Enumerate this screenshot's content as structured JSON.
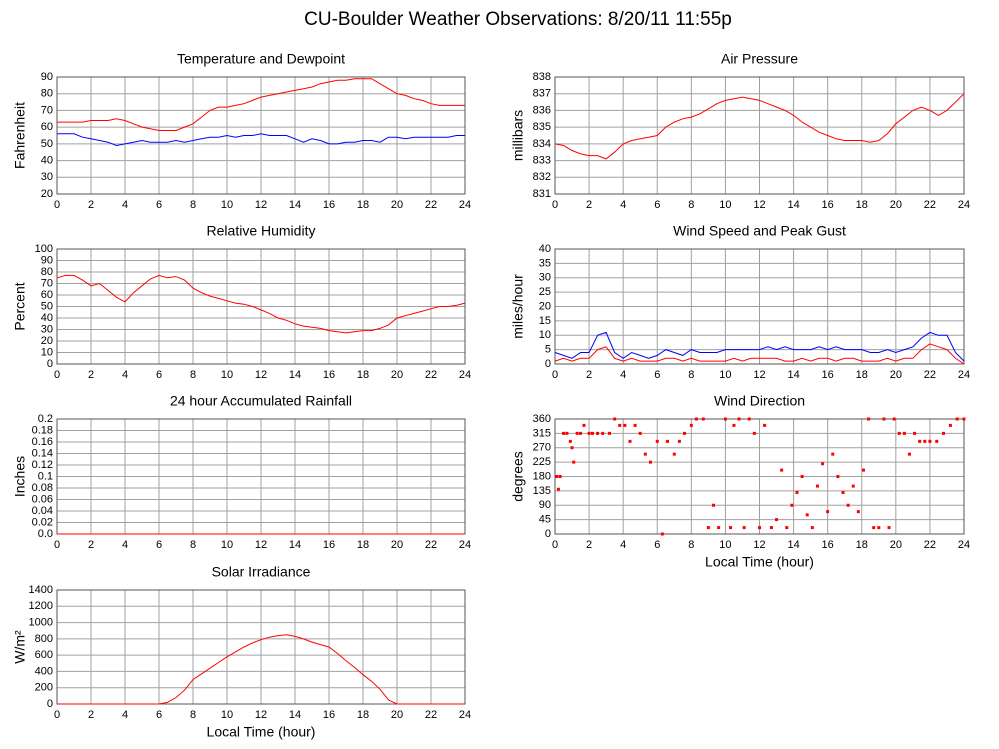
{
  "title": "CU-Boulder Weather Observations: 8/20/11 11:55p",
  "chart_data": [
    {
      "type": "line",
      "title": "Temperature and Dewpoint",
      "y_label": "Fahrenheit",
      "x": [
        0,
        0.5,
        1,
        1.5,
        2,
        2.5,
        3,
        3.5,
        4,
        4.5,
        5,
        5.5,
        6,
        6.5,
        7,
        7.5,
        8,
        8.5,
        9,
        9.5,
        10,
        10.5,
        11,
        11.5,
        12,
        12.5,
        13,
        13.5,
        14,
        14.5,
        15,
        15.5,
        16,
        16.5,
        17,
        17.5,
        18,
        18.5,
        19,
        19.5,
        20,
        20.5,
        21,
        21.5,
        22,
        22.5,
        23,
        23.5,
        24
      ],
      "series": [
        {
          "color": "#ff0000",
          "values": [
            63,
            63,
            63,
            63,
            64,
            64,
            64,
            65,
            64,
            62,
            60,
            59,
            58,
            58,
            58,
            60,
            62,
            66,
            70,
            72,
            72,
            73,
            74,
            76,
            78,
            79,
            80,
            81,
            82,
            83,
            84,
            86,
            87,
            88,
            88,
            89,
            89,
            89,
            86,
            83,
            80,
            79,
            77,
            76,
            74,
            73,
            73,
            73,
            73
          ]
        },
        {
          "color": "#0000ff",
          "values": [
            56,
            56,
            56,
            54,
            53,
            52,
            51,
            49,
            50,
            51,
            52,
            51,
            51,
            51,
            52,
            51,
            52,
            53,
            54,
            54,
            55,
            54,
            55,
            55,
            56,
            55,
            55,
            55,
            53,
            51,
            53,
            52,
            50,
            50,
            51,
            51,
            52,
            52,
            51,
            54,
            54,
            53,
            54,
            54,
            54,
            54,
            54,
            55,
            55
          ]
        }
      ],
      "xlim": [
        0,
        24
      ],
      "xticks": [
        0,
        2,
        4,
        6,
        8,
        10,
        12,
        14,
        16,
        18,
        20,
        22,
        24
      ],
      "ylim": [
        20,
        90
      ],
      "yticks": [
        20,
        30,
        40,
        50,
        60,
        70,
        80,
        90
      ],
      "grid": true
    },
    {
      "type": "line",
      "title": "Air Pressure",
      "y_label": "millibars",
      "x": [
        0,
        0.5,
        1,
        1.5,
        2,
        2.5,
        3,
        3.5,
        4,
        4.5,
        5,
        5.5,
        6,
        6.5,
        7,
        7.5,
        8,
        8.5,
        9,
        9.5,
        10,
        10.5,
        11,
        11.5,
        12,
        12.5,
        13,
        13.5,
        14,
        14.5,
        15,
        15.5,
        16,
        16.5,
        17,
        17.5,
        18,
        18.5,
        19,
        19.5,
        20,
        20.5,
        21,
        21.5,
        22,
        22.5,
        23,
        23.5,
        24
      ],
      "series": [
        {
          "color": "#ff0000",
          "values": [
            834.0,
            833.9,
            833.6,
            833.4,
            833.3,
            833.3,
            833.1,
            833.5,
            834.0,
            834.2,
            834.3,
            834.4,
            834.5,
            835.0,
            835.3,
            835.5,
            835.6,
            835.8,
            836.1,
            836.4,
            836.6,
            836.7,
            836.8,
            836.7,
            836.6,
            836.4,
            836.2,
            836.0,
            835.7,
            835.3,
            835.0,
            834.7,
            834.5,
            834.3,
            834.2,
            834.2,
            834.2,
            834.1,
            834.2,
            834.6,
            835.2,
            835.6,
            836.0,
            836.2,
            836.0,
            835.7,
            836.0,
            836.5,
            837.0
          ]
        }
      ],
      "xlim": [
        0,
        24
      ],
      "xticks": [
        0,
        2,
        4,
        6,
        8,
        10,
        12,
        14,
        16,
        18,
        20,
        22,
        24
      ],
      "ylim": [
        831,
        838
      ],
      "yticks": [
        831,
        832,
        833,
        834,
        835,
        836,
        837,
        838
      ],
      "grid": true
    },
    {
      "type": "line",
      "title": "Relative Humidity",
      "y_label": "Percent",
      "x": [
        0,
        0.5,
        1,
        1.5,
        2,
        2.5,
        3,
        3.5,
        4,
        4.5,
        5,
        5.5,
        6,
        6.5,
        7,
        7.5,
        8,
        8.5,
        9,
        9.5,
        10,
        10.5,
        11,
        11.5,
        12,
        12.5,
        13,
        13.5,
        14,
        14.5,
        15,
        15.5,
        16,
        16.5,
        17,
        17.5,
        18,
        18.5,
        19,
        19.5,
        20,
        20.5,
        21,
        21.5,
        22,
        22.5,
        23,
        23.5,
        24
      ],
      "series": [
        {
          "color": "#ff0000",
          "values": [
            75,
            77,
            77,
            73,
            68,
            70,
            64,
            58,
            54,
            62,
            68,
            74,
            77,
            75,
            76,
            73,
            66,
            62,
            59,
            57,
            55,
            53,
            52,
            50,
            47,
            44,
            40,
            38,
            35,
            33,
            32,
            31,
            29,
            28,
            27,
            28,
            29,
            29,
            31,
            34,
            40,
            42,
            44,
            46,
            48,
            50,
            50,
            51,
            53
          ]
        }
      ],
      "xlim": [
        0,
        24
      ],
      "xticks": [
        0,
        2,
        4,
        6,
        8,
        10,
        12,
        14,
        16,
        18,
        20,
        22,
        24
      ],
      "ylim": [
        0,
        100
      ],
      "yticks": [
        0,
        10,
        20,
        30,
        40,
        50,
        60,
        70,
        80,
        90,
        100
      ],
      "grid": true
    },
    {
      "type": "line",
      "title": "Wind Speed and Peak Gust",
      "y_label": "miles/hour",
      "x": [
        0,
        0.5,
        1,
        1.5,
        2,
        2.5,
        3,
        3.5,
        4,
        4.5,
        5,
        5.5,
        6,
        6.5,
        7,
        7.5,
        8,
        8.5,
        9,
        9.5,
        10,
        10.5,
        11,
        11.5,
        12,
        12.5,
        13,
        13.5,
        14,
        14.5,
        15,
        15.5,
        16,
        16.5,
        17,
        17.5,
        18,
        18.5,
        19,
        19.5,
        20,
        20.5,
        21,
        21.5,
        22,
        22.5,
        23,
        23.5,
        24
      ],
      "series": [
        {
          "color": "#0000ff",
          "values": [
            4,
            3,
            2,
            4,
            4,
            10,
            11,
            4,
            2,
            4,
            3,
            2,
            3,
            5,
            4,
            3,
            5,
            4,
            4,
            4,
            5,
            5,
            5,
            5,
            5,
            6,
            5,
            6,
            5,
            5,
            5,
            6,
            5,
            6,
            5,
            5,
            5,
            4,
            4,
            5,
            4,
            5,
            6,
            9,
            11,
            10,
            10,
            4,
            1
          ]
        },
        {
          "color": "#ff0000",
          "values": [
            1,
            2,
            1,
            2,
            2,
            5,
            6,
            2,
            1,
            2,
            1,
            1,
            1,
            2,
            2,
            1,
            2,
            1,
            1,
            1,
            1,
            2,
            1,
            2,
            2,
            2,
            2,
            1,
            1,
            2,
            1,
            2,
            2,
            1,
            2,
            2,
            1,
            1,
            1,
            2,
            1,
            2,
            2,
            5,
            7,
            6,
            5,
            2,
            0
          ]
        }
      ],
      "xlim": [
        0,
        24
      ],
      "xticks": [
        0,
        2,
        4,
        6,
        8,
        10,
        12,
        14,
        16,
        18,
        20,
        22,
        24
      ],
      "ylim": [
        0,
        40
      ],
      "yticks": [
        0,
        5,
        10,
        15,
        20,
        25,
        30,
        35,
        40
      ],
      "grid": true
    },
    {
      "type": "line",
      "title": "24 hour Accumulated Rainfall",
      "y_label": "Inches",
      "x": [
        0,
        24
      ],
      "series": [
        {
          "color": "#ff0000",
          "values": [
            0,
            0
          ]
        }
      ],
      "xlim": [
        0,
        24
      ],
      "xticks": [
        0,
        2,
        4,
        6,
        8,
        10,
        12,
        14,
        16,
        18,
        20,
        22,
        24
      ],
      "ylim": [
        0,
        0.2
      ],
      "yticks": [
        {
          "value": 0,
          "label": "0.0"
        },
        0.02,
        0.04,
        0.06,
        0.08,
        0.1,
        0.12,
        0.14,
        0.16,
        0.18,
        0.2
      ],
      "grid": true
    },
    {
      "type": "scatter",
      "title": "Wind Direction",
      "y_label": "degrees",
      "x_label": "Local Time (hour)",
      "x": [
        0.1,
        0.2,
        0.3,
        0.5,
        0.7,
        0.9,
        1.0,
        1.1,
        1.3,
        1.5,
        1.7,
        2.0,
        2.2,
        2.5,
        2.8,
        3.2,
        3.5,
        3.8,
        4.1,
        4.4,
        4.7,
        5.0,
        5.3,
        5.6,
        6.0,
        6.3,
        6.6,
        7.0,
        7.3,
        7.6,
        8.0,
        8.3,
        8.7,
        9.0,
        9.3,
        9.6,
        10.0,
        10.3,
        10.5,
        10.8,
        11.1,
        11.4,
        11.7,
        12.0,
        12.3,
        12.7,
        13.0,
        13.3,
        13.6,
        13.9,
        14.2,
        14.5,
        14.8,
        15.1,
        15.4,
        15.7,
        16.0,
        16.3,
        16.6,
        16.9,
        17.2,
        17.5,
        17.8,
        18.1,
        18.4,
        18.7,
        19.0,
        19.3,
        19.6,
        19.9,
        20.2,
        20.5,
        20.8,
        21.1,
        21.4,
        21.7,
        22.0,
        22.4,
        22.8,
        23.2,
        23.6,
        24
      ],
      "series": [
        {
          "color": "#ff0000",
          "values": [
            180,
            140,
            180,
            315,
            315,
            290,
            270,
            225,
            315,
            315,
            340,
            315,
            315,
            315,
            315,
            315,
            360,
            340,
            340,
            290,
            340,
            315,
            250,
            225,
            290,
            0,
            290,
            250,
            290,
            315,
            340,
            360,
            360,
            20,
            90,
            20,
            360,
            20,
            340,
            360,
            20,
            360,
            315,
            20,
            340,
            20,
            45,
            200,
            20,
            90,
            130,
            180,
            60,
            20,
            150,
            220,
            70,
            250,
            180,
            130,
            90,
            150,
            70,
            200,
            360,
            20,
            20,
            360,
            20,
            360,
            315,
            315,
            250,
            315,
            290,
            290,
            290,
            290,
            315,
            340,
            360,
            360
          ]
        }
      ],
      "xlim": [
        0,
        24
      ],
      "xticks": [
        0,
        2,
        4,
        6,
        8,
        10,
        12,
        14,
        16,
        18,
        20,
        22,
        24
      ],
      "ylim": [
        0,
        360
      ],
      "yticks": [
        0,
        45,
        90,
        135,
        180,
        225,
        270,
        315,
        360
      ],
      "grid": true
    },
    {
      "type": "line",
      "title": "Solar Irradiance",
      "y_label": "W/m²",
      "x_label": "Local Time (hour)",
      "x": [
        0,
        0.5,
        1,
        1.5,
        2,
        2.5,
        3,
        3.5,
        4,
        4.5,
        5,
        5.5,
        6,
        6.5,
        7,
        7.5,
        8,
        8.5,
        9,
        9.5,
        10,
        10.5,
        11,
        11.5,
        12,
        12.5,
        13,
        13.5,
        14,
        14.5,
        15,
        15.5,
        16,
        16.5,
        17,
        17.5,
        18,
        18.5,
        19,
        19.5,
        20,
        20.5,
        21,
        21.5,
        22,
        22.5,
        23,
        23.5,
        24
      ],
      "series": [
        {
          "color": "#ff0000",
          "values": [
            0,
            0,
            0,
            0,
            0,
            0,
            0,
            0,
            0,
            0,
            0,
            0,
            0,
            20,
            80,
            170,
            300,
            370,
            440,
            510,
            580,
            640,
            700,
            750,
            790,
            820,
            840,
            850,
            830,
            800,
            760,
            730,
            700,
            620,
            530,
            450,
            360,
            280,
            180,
            50,
            0,
            0,
            0,
            0,
            0,
            0,
            0,
            0,
            0
          ]
        }
      ],
      "xlim": [
        0,
        24
      ],
      "xticks": [
        0,
        2,
        4,
        6,
        8,
        10,
        12,
        14,
        16,
        18,
        20,
        22,
        24
      ],
      "ylim": [
        0,
        1400
      ],
      "yticks": [
        0,
        200,
        400,
        600,
        800,
        1000,
        1200,
        1400
      ],
      "grid": true
    }
  ]
}
